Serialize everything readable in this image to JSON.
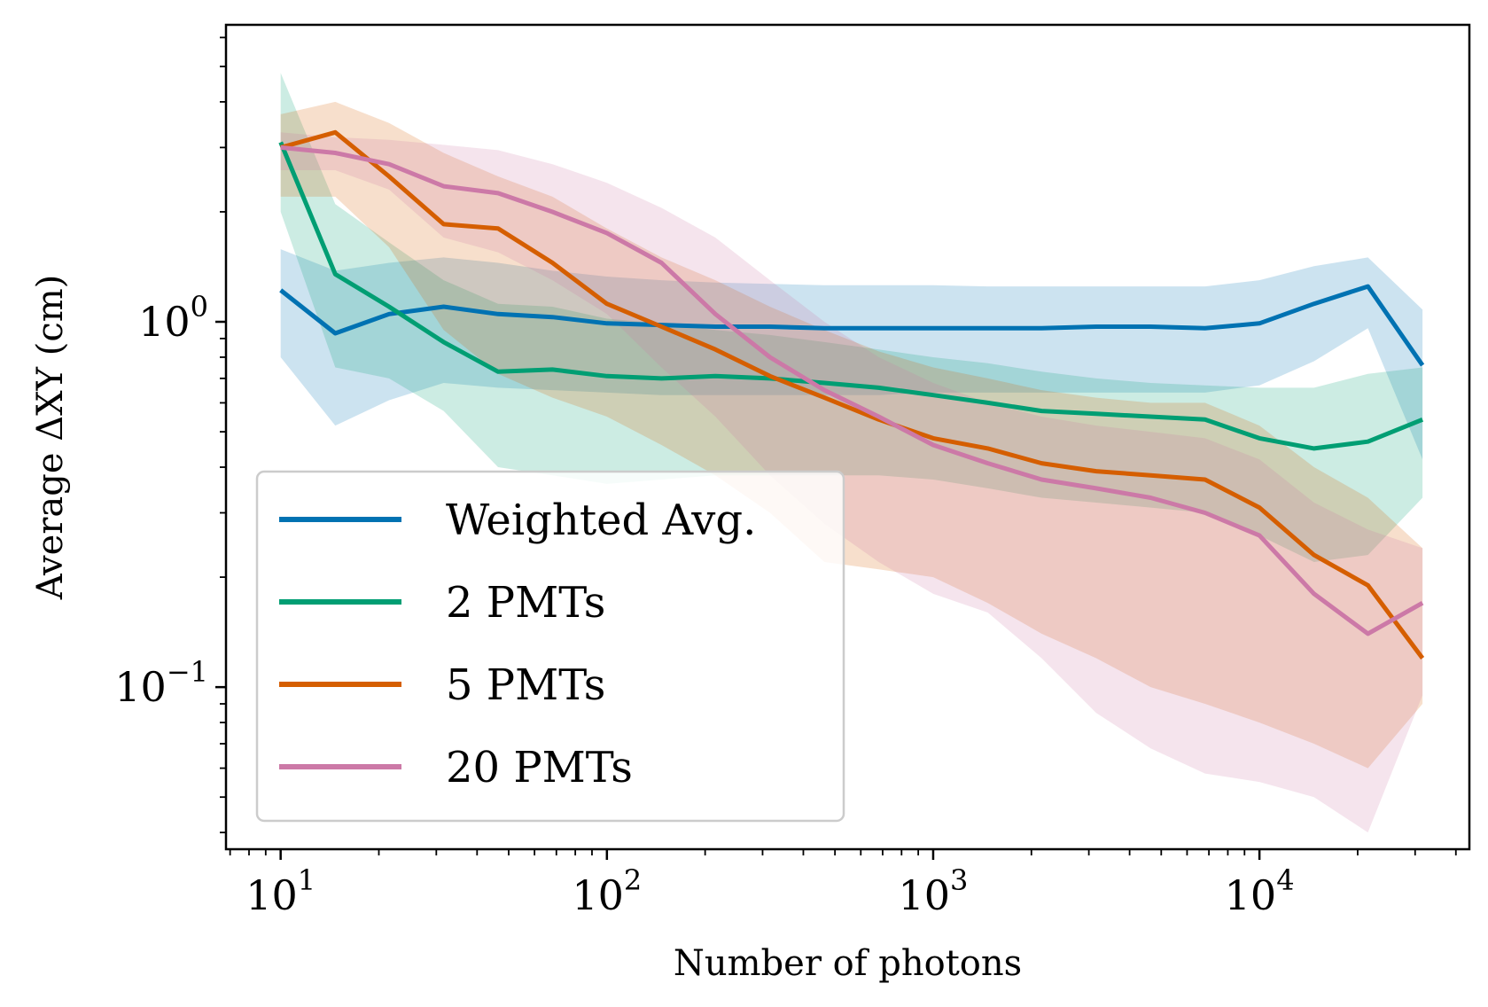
{
  "chart_data": {
    "type": "line",
    "xlabel": "Number of photons",
    "ylabel": "Average ΔXY (cm)",
    "xscale": "log",
    "yscale": "log",
    "xlim": [
      6.8,
      44000
    ],
    "ylim": [
      0.036,
      6.5
    ],
    "grid": false,
    "legend_position": "lower-left",
    "x_ticks": [
      {
        "value": 10,
        "base": "10",
        "exp": "1"
      },
      {
        "value": 100,
        "base": "10",
        "exp": "2"
      },
      {
        "value": 1000,
        "base": "10",
        "exp": "3"
      },
      {
        "value": 10000,
        "base": "10",
        "exp": "4"
      }
    ],
    "y_ticks": [
      {
        "value": 1,
        "base": "10",
        "exp": "0"
      },
      {
        "value": 0.1,
        "base": "10",
        "exp": "−1"
      }
    ],
    "x": [
      10,
      14.7,
      21.5,
      31.6,
      46.4,
      68.1,
      100,
      147,
      215,
      316,
      464,
      681,
      1000,
      1470,
      2150,
      3160,
      4640,
      6810,
      10000,
      14700,
      21500,
      31600
    ],
    "series": [
      {
        "name": "Weighted Avg.",
        "color": "#0072b2",
        "values": [
          1.22,
          0.93,
          1.05,
          1.1,
          1.05,
          1.03,
          0.99,
          0.98,
          0.97,
          0.97,
          0.96,
          0.96,
          0.96,
          0.96,
          0.96,
          0.97,
          0.97,
          0.96,
          0.99,
          1.12,
          1.25,
          0.76
        ],
        "upper": [
          1.58,
          1.38,
          1.45,
          1.5,
          1.45,
          1.38,
          1.33,
          1.3,
          1.28,
          1.27,
          1.26,
          1.26,
          1.26,
          1.25,
          1.25,
          1.25,
          1.25,
          1.25,
          1.3,
          1.42,
          1.5,
          1.08
        ],
        "lower": [
          0.8,
          0.52,
          0.61,
          0.68,
          0.66,
          0.65,
          0.64,
          0.63,
          0.63,
          0.63,
          0.63,
          0.63,
          0.64,
          0.64,
          0.64,
          0.64,
          0.64,
          0.64,
          0.67,
          0.78,
          0.96,
          0.42
        ]
      },
      {
        "name": "2 PMTs",
        "color": "#009e73",
        "values": [
          3.1,
          1.35,
          1.1,
          0.88,
          0.73,
          0.74,
          0.71,
          0.7,
          0.71,
          0.7,
          0.68,
          0.66,
          0.63,
          0.6,
          0.57,
          0.56,
          0.55,
          0.54,
          0.48,
          0.45,
          0.47,
          0.54
        ],
        "upper": [
          4.8,
          2.1,
          1.65,
          1.3,
          1.12,
          1.1,
          1.02,
          0.99,
          0.95,
          0.92,
          0.88,
          0.84,
          0.8,
          0.77,
          0.73,
          0.7,
          0.68,
          0.67,
          0.66,
          0.66,
          0.72,
          0.75
        ],
        "lower": [
          2.0,
          0.75,
          0.7,
          0.57,
          0.4,
          0.38,
          0.36,
          0.37,
          0.38,
          0.38,
          0.38,
          0.38,
          0.37,
          0.35,
          0.33,
          0.32,
          0.31,
          0.3,
          0.26,
          0.22,
          0.23,
          0.33
        ]
      },
      {
        "name": "5 PMTs",
        "color": "#d55e00",
        "values": [
          3.0,
          3.3,
          2.5,
          1.85,
          1.8,
          1.45,
          1.12,
          0.97,
          0.84,
          0.71,
          0.62,
          0.54,
          0.48,
          0.45,
          0.41,
          0.39,
          0.38,
          0.37,
          0.31,
          0.23,
          0.19,
          0.12
        ],
        "upper": [
          3.7,
          4.0,
          3.5,
          2.9,
          2.5,
          2.2,
          1.8,
          1.5,
          1.3,
          1.1,
          0.95,
          0.83,
          0.75,
          0.7,
          0.65,
          0.62,
          0.6,
          0.6,
          0.52,
          0.4,
          0.33,
          0.24
        ],
        "lower": [
          2.2,
          2.2,
          1.6,
          0.95,
          0.72,
          0.62,
          0.55,
          0.46,
          0.38,
          0.3,
          0.22,
          0.21,
          0.2,
          0.17,
          0.14,
          0.12,
          0.1,
          0.09,
          0.08,
          0.07,
          0.06,
          0.09
        ]
      },
      {
        "name": "20 PMTs",
        "color": "#cc79a7",
        "values": [
          3.0,
          2.9,
          2.7,
          2.35,
          2.25,
          2.0,
          1.75,
          1.45,
          1.05,
          0.8,
          0.65,
          0.55,
          0.46,
          0.41,
          0.37,
          0.35,
          0.33,
          0.3,
          0.26,
          0.18,
          0.14,
          0.17
        ],
        "upper": [
          3.3,
          3.2,
          3.15,
          3.05,
          2.95,
          2.7,
          2.4,
          2.05,
          1.7,
          1.3,
          1.0,
          0.8,
          0.68,
          0.6,
          0.55,
          0.52,
          0.5,
          0.48,
          0.42,
          0.32,
          0.27,
          0.24
        ],
        "lower": [
          2.6,
          2.6,
          2.3,
          1.7,
          1.55,
          1.3,
          1.05,
          0.75,
          0.55,
          0.38,
          0.28,
          0.22,
          0.18,
          0.16,
          0.12,
          0.085,
          0.068,
          0.058,
          0.055,
          0.05,
          0.04,
          0.095
        ]
      }
    ]
  }
}
